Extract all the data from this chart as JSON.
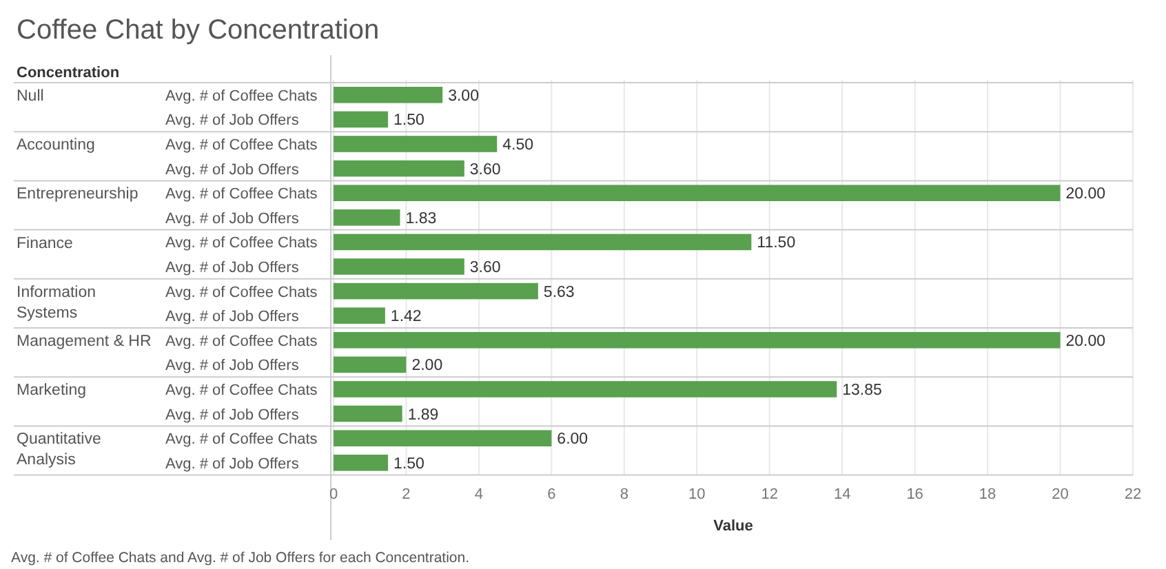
{
  "chart_data": {
    "type": "bar",
    "orientation": "horizontal",
    "title": "Coffee Chat by Concentration",
    "ylabel": "Concentration",
    "xlabel": "Value",
    "categories": [
      "Avg. # of Coffee Chats",
      "Avg. # of Job Offers",
      "Avg. # of Coffee Chats",
      "Avg. # of Job Offers",
      "Avg. # of Coffee Chats",
      "Avg. # of Job Offers",
      "Avg. # of Coffee Chats",
      "Avg. # of Job Offers",
      "Avg. # of Coffee Chats",
      "Avg. # of Job Offers",
      "Avg. # of Coffee Chats",
      "Avg. # of Job Offers",
      "Avg. # of Coffee Chats",
      "Avg. # of Job Offers",
      "Avg. # of Coffee Chats",
      "Avg. # of Job Offers"
    ],
    "values": [
      3.0,
      1.5,
      4.5,
      3.6,
      20.0,
      1.83,
      11.5,
      3.6,
      5.63,
      1.42,
      20.0,
      2.0,
      13.85,
      1.89,
      6.0,
      1.5
    ],
    "value_labels": [
      "3.00",
      "1.50",
      "4.50",
      "3.60",
      "20.00",
      "1.83",
      "11.50",
      "3.60",
      "5.63",
      "1.42",
      "20.00",
      "2.00",
      "13.85",
      "1.89",
      "6.00",
      "1.50"
    ],
    "color": "#59a14f",
    "xlim": [
      0,
      22
    ],
    "xticks": [
      0,
      2,
      4,
      6,
      8,
      10,
      12,
      14,
      16,
      18,
      20,
      22
    ],
    "grid": "x",
    "annotations": [
      "Null",
      "Accounting",
      "Entrepreneurship",
      "Finance",
      "Information Systems",
      "Management & HR",
      "Marketing",
      "Quantitative Analysis",
      "Avg. # of Coffee Chats and Avg. # of Job Offers for each Concentration."
    ]
  }
}
